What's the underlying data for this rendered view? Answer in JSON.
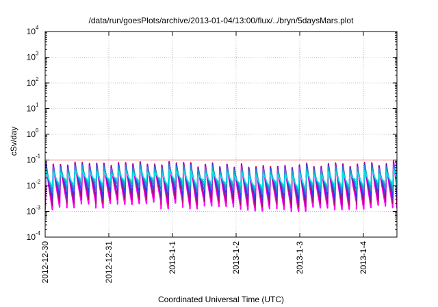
{
  "chart_data": {
    "type": "line",
    "title": "/data/run/goesPlots/archive/2013-01-04/13:00/flux/../bryn/5daysMars.plot",
    "xlabel": "Coordinated Universal Time (UTC)",
    "ylabel": "cSv/day",
    "yscale": "log",
    "ylim": [
      0.0001,
      10000
    ],
    "xlim": [
      "2012-12-30",
      "2013-01-04 13:00"
    ],
    "x_ticks": [
      "2012-12-30",
      "2012-12-31",
      "2013-1-1",
      "2013-1-2",
      "2013-1-3",
      "2013-1-4"
    ],
    "y_ticks": [
      {
        "base": "10",
        "exp": "4"
      },
      {
        "base": "10",
        "exp": "3"
      },
      {
        "base": "10",
        "exp": "2"
      },
      {
        "base": "10",
        "exp": "1"
      },
      {
        "base": "10",
        "exp": "0"
      },
      {
        "base": "10",
        "exp": "-1"
      },
      {
        "base": "10",
        "exp": "-2"
      },
      {
        "base": "10",
        "exp": "-3"
      },
      {
        "base": "10",
        "exp": "-4"
      }
    ],
    "grid": true,
    "reference_line": {
      "value": 0.1,
      "color": "#ff6666"
    },
    "sawtooth": {
      "period_hours": 2.73,
      "peak_range": [
        0.03,
        0.1
      ],
      "trough_range": [
        0.0015,
        0.005
      ]
    },
    "series": [
      {
        "color": "#ff00ff",
        "peak_factor": 1.0,
        "trough_factor": 0.55
      },
      {
        "color": "#cc0033",
        "peak_factor": 1.05,
        "trough_factor": 0.8
      },
      {
        "color": "#7a1fa2",
        "peak_factor": 0.95,
        "trough_factor": 1.0
      },
      {
        "color": "#1f3fff",
        "peak_factor": 0.9,
        "trough_factor": 1.6
      },
      {
        "color": "#3a7bd5",
        "peak_factor": 0.8,
        "trough_factor": 2.4
      },
      {
        "color": "#1aa7b8",
        "peak_factor": 0.65,
        "trough_factor": 3.2
      },
      {
        "color": "#00e5e5",
        "peak_factor": 0.5,
        "trough_factor": 4.2
      }
    ]
  }
}
